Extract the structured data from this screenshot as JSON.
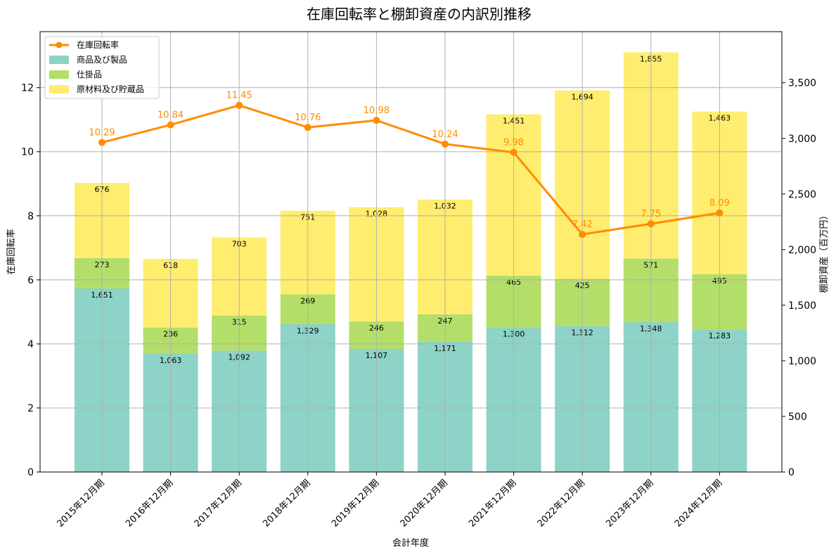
{
  "chart_data": {
    "type": "bar",
    "title": "在庫回転率と棚卸資産の内訳別推移",
    "xlabel": "会計年度",
    "ylabel_left": "在庫回転率",
    "ylabel_right": "棚卸資産（百万円）",
    "categories": [
      "2015年12月期",
      "2016年12月期",
      "2017年12月期",
      "2018年12月期",
      "2019年12月期",
      "2020年12月期",
      "2021年12月期",
      "2022年12月期",
      "2023年12月期",
      "2024年12月期"
    ],
    "series": [
      {
        "name": "商品及び製品",
        "axis": "right",
        "color": "#8dd3c7",
        "values": [
          1651,
          1063,
          1092,
          1329,
          1107,
          1171,
          1300,
          1312,
          1348,
          1283
        ]
      },
      {
        "name": "仕掛品",
        "axis": "right",
        "color": "#b3de69",
        "values": [
          273,
          236,
          315,
          269,
          246,
          247,
          465,
          425,
          571,
          495
        ]
      },
      {
        "name": "原材料及び貯蔵品",
        "axis": "right",
        "color": "#ffed6f",
        "values": [
          676,
          618,
          703,
          751,
          1028,
          1032,
          1451,
          1694,
          1855,
          1463
        ]
      },
      {
        "name": "在庫回転率",
        "axis": "left",
        "type": "line",
        "color": "#ff8c00",
        "values": [
          10.29,
          10.84,
          11.45,
          10.76,
          10.98,
          10.24,
          9.98,
          7.42,
          7.75,
          8.09
        ]
      }
    ],
    "y_left": {
      "ylim": [
        0,
        13.75
      ],
      "ticks": [
        0,
        2,
        4,
        6,
        8,
        10,
        12
      ]
    },
    "y_right": {
      "ylim": [
        0,
        3960
      ],
      "ticks": [
        0,
        500,
        1000,
        1500,
        2000,
        2500,
        3000,
        3500
      ]
    },
    "grid": true,
    "legend": "top-left"
  }
}
